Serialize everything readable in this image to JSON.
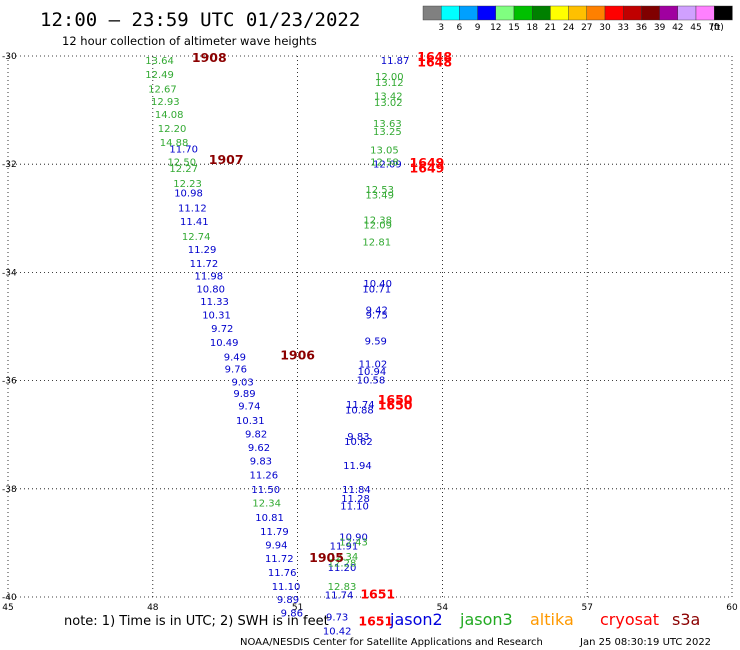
{
  "chart_data": {
    "type": "scatter",
    "title": "12:00 – 23:59 UTC 01/23/2022",
    "subtitle": "12 hour collection of altimeter wave heights",
    "xlim": [
      45,
      60
    ],
    "ylim": [
      -40,
      -30
    ],
    "x_ticks": [
      "45",
      "48",
      "51",
      "54",
      "57",
      "60"
    ],
    "y_ticks": [
      "-30",
      "-32",
      "-34",
      "-36",
      "-38",
      "-40"
    ],
    "grid": true,
    "legend": {
      "values": [
        "3",
        "6",
        "9",
        "12",
        "15",
        "18",
        "21",
        "24",
        "27",
        "30",
        "33",
        "36",
        "39",
        "42",
        "45",
        "70"
      ],
      "unit": "(ft)",
      "colors": [
        "#808080",
        "#00ffff",
        "#00a0ff",
        "#0000ff",
        "#80ff80",
        "#00c000",
        "#008000",
        "#ffff00",
        "#ffc000",
        "#ff8000",
        "#ff0000",
        "#c00000",
        "#800000",
        "#a000a0",
        "#d0a0ff",
        "#ff80ff",
        "#000000"
      ]
    },
    "series": [
      {
        "name": "jason2",
        "color": "#0000cc",
        "points": [
          {
            "x": 48.64,
            "y": -31.71,
            "label": "11.70"
          },
          {
            "x": 48.74,
            "y": -32.52,
            "label": "10.98"
          },
          {
            "x": 48.82,
            "y": -32.8,
            "label": "11.12"
          },
          {
            "x": 48.86,
            "y": -33.05,
            "label": "11.41"
          },
          {
            "x": 49.02,
            "y": -33.57,
            "label": "11.29"
          },
          {
            "x": 49.06,
            "y": -33.83,
            "label": "11.72"
          },
          {
            "x": 49.16,
            "y": -34.06,
            "label": "11.98"
          },
          {
            "x": 49.2,
            "y": -34.3,
            "label": "10.80"
          },
          {
            "x": 49.28,
            "y": -34.53,
            "label": "11.33"
          },
          {
            "x": 49.32,
            "y": -34.78,
            "label": "10.31"
          },
          {
            "x": 49.44,
            "y": -35.03,
            "label": "9.72"
          },
          {
            "x": 49.48,
            "y": -35.29,
            "label": "10.49"
          },
          {
            "x": 49.7,
            "y": -35.55,
            "label": "9.49"
          },
          {
            "x": 49.72,
            "y": -35.78,
            "label": "9.76"
          },
          {
            "x": 49.86,
            "y": -36.02,
            "label": "9.03"
          },
          {
            "x": 49.9,
            "y": -36.23,
            "label": "9.89"
          },
          {
            "x": 50.0,
            "y": -36.46,
            "label": "9.74"
          },
          {
            "x": 50.02,
            "y": -36.73,
            "label": "10.31"
          },
          {
            "x": 50.14,
            "y": -36.98,
            "label": "9.82"
          },
          {
            "x": 50.2,
            "y": -37.23,
            "label": "9.62"
          },
          {
            "x": 50.24,
            "y": -37.48,
            "label": "9.83"
          },
          {
            "x": 50.3,
            "y": -37.74,
            "label": "11.26"
          },
          {
            "x": 50.34,
            "y": -38.0,
            "label": "11.50"
          },
          {
            "x": 50.42,
            "y": -38.52,
            "label": "10.81"
          },
          {
            "x": 50.52,
            "y": -38.78,
            "label": "11.79"
          },
          {
            "x": 50.56,
            "y": -39.03,
            "label": "9.94"
          },
          {
            "x": 50.62,
            "y": -39.28,
            "label": "11.72"
          },
          {
            "x": 50.68,
            "y": -39.54,
            "label": "11.76"
          },
          {
            "x": 50.76,
            "y": -39.8,
            "label": "11.10"
          },
          {
            "x": 50.8,
            "y": -40.04,
            "label": "9.89"
          },
          {
            "x": 50.88,
            "y": -40.29,
            "label": "9.86"
          },
          {
            "x": 53.02,
            "y": -30.07,
            "label": "11.87"
          },
          {
            "x": 52.86,
            "y": -31.99,
            "label": "12.09"
          },
          {
            "x": 52.66,
            "y": -34.2,
            "label": "10.40"
          },
          {
            "x": 52.64,
            "y": -34.3,
            "label": "10.71"
          },
          {
            "x": 52.64,
            "y": -34.69,
            "label": "9.42"
          },
          {
            "x": 52.64,
            "y": -34.78,
            "label": "9.75"
          },
          {
            "x": 52.62,
            "y": -35.26,
            "label": "9.59"
          },
          {
            "x": 52.56,
            "y": -35.68,
            "label": "11.02"
          },
          {
            "x": 52.54,
            "y": -35.82,
            "label": "10.94"
          },
          {
            "x": 52.52,
            "y": -35.98,
            "label": "10.58"
          },
          {
            "x": 52.3,
            "y": -36.43,
            "label": "11.74"
          },
          {
            "x": 52.28,
            "y": -36.53,
            "label": "10.88"
          },
          {
            "x": 52.26,
            "y": -37.02,
            "label": "9.83"
          },
          {
            "x": 52.26,
            "y": -37.12,
            "label": "10.62"
          },
          {
            "x": 52.24,
            "y": -37.56,
            "label": "11.94"
          },
          {
            "x": 52.22,
            "y": -38.0,
            "label": "11.84"
          },
          {
            "x": 52.2,
            "y": -38.17,
            "label": "11.28"
          },
          {
            "x": 52.18,
            "y": -38.31,
            "label": "11.10"
          },
          {
            "x": 52.16,
            "y": -38.88,
            "label": "10.90"
          },
          {
            "x": 51.96,
            "y": -39.05,
            "label": "11.91"
          },
          {
            "x": 51.92,
            "y": -39.45,
            "label": "11.20"
          },
          {
            "x": 51.86,
            "y": -39.95,
            "label": "11.74"
          },
          {
            "x": 51.82,
            "y": -40.36,
            "label": "9.73"
          },
          {
            "x": 51.82,
            "y": -40.62,
            "label": "10.42"
          }
        ]
      },
      {
        "name": "jason3",
        "color": "#33aa33",
        "points": [
          {
            "x": 48.14,
            "y": -30.07,
            "label": "13.64"
          },
          {
            "x": 48.14,
            "y": -30.33,
            "label": "12.49"
          },
          {
            "x": 48.2,
            "y": -30.6,
            "label": "12.67"
          },
          {
            "x": 48.26,
            "y": -30.83,
            "label": "12.93"
          },
          {
            "x": 48.34,
            "y": -31.07,
            "label": "14.08"
          },
          {
            "x": 48.4,
            "y": -31.33,
            "label": "12.20"
          },
          {
            "x": 48.44,
            "y": -31.59,
            "label": "14.88"
          },
          {
            "x": 48.6,
            "y": -31.95,
            "label": "12.50"
          },
          {
            "x": 48.64,
            "y": -32.07,
            "label": "12.27"
          },
          {
            "x": 48.72,
            "y": -32.35,
            "label": "12.23"
          },
          {
            "x": 48.9,
            "y": -33.33,
            "label": "12.74"
          },
          {
            "x": 50.36,
            "y": -38.25,
            "label": "12.34"
          },
          {
            "x": 51.96,
            "y": -39.24,
            "label": "12.34"
          },
          {
            "x": 51.92,
            "y": -39.36,
            "label": "12.28"
          },
          {
            "x": 51.92,
            "y": -39.8,
            "label": "12.83"
          },
          {
            "x": 52.16,
            "y": -38.97,
            "label": "12.43"
          },
          {
            "x": 52.9,
            "y": -30.37,
            "label": "12.00"
          },
          {
            "x": 52.9,
            "y": -30.48,
            "label": "13.12"
          },
          {
            "x": 52.88,
            "y": -30.73,
            "label": "13.42"
          },
          {
            "x": 52.88,
            "y": -30.85,
            "label": "13.02"
          },
          {
            "x": 52.86,
            "y": -31.24,
            "label": "13.63"
          },
          {
            "x": 52.86,
            "y": -31.39,
            "label": "13.25"
          },
          {
            "x": 52.8,
            "y": -31.73,
            "label": "13.05"
          },
          {
            "x": 52.8,
            "y": -31.95,
            "label": "12.58"
          },
          {
            "x": 52.7,
            "y": -32.46,
            "label": "12.53"
          },
          {
            "x": 52.7,
            "y": -32.56,
            "label": "13.49"
          },
          {
            "x": 52.66,
            "y": -33.02,
            "label": "12.38"
          },
          {
            "x": 52.66,
            "y": -33.11,
            "label": "12.09"
          },
          {
            "x": 52.64,
            "y": -33.43,
            "label": "12.81"
          }
        ]
      },
      {
        "name": "cryosat",
        "color": "#ff0000",
        "points": [
          {
            "x": 53.84,
            "y": -30.02,
            "label": "1648"
          },
          {
            "x": 53.84,
            "y": -30.12,
            "label": "1648"
          },
          {
            "x": 53.68,
            "y": -31.98,
            "label": "1649"
          },
          {
            "x": 53.68,
            "y": -32.08,
            "label": "1649"
          },
          {
            "x": 53.02,
            "y": -36.36,
            "label": "1650"
          },
          {
            "x": 53.02,
            "y": -36.46,
            "label": "1650"
          },
          {
            "x": 52.66,
            "y": -39.95,
            "label": "1651"
          },
          {
            "x": 52.62,
            "y": -40.45,
            "label": "1651"
          }
        ]
      },
      {
        "name": "s3a",
        "color": "#8b0000",
        "points": [
          {
            "x": 49.17,
            "y": -30.04,
            "label": "1908"
          },
          {
            "x": 49.52,
            "y": -31.92,
            "label": "1907"
          },
          {
            "x": 51.0,
            "y": -35.54,
            "label": "1906"
          },
          {
            "x": 51.6,
            "y": -39.28,
            "label": "1905"
          }
        ]
      }
    ]
  },
  "footer": {
    "note": "note: 1) Time is in UTC; 2) SWH is in feet",
    "legend_names": [
      "jason2",
      "jason3",
      "altika",
      "cryosat",
      "s3a"
    ],
    "legend_colors": [
      "#0000dd",
      "#22aa22",
      "#ff9900",
      "#ff0000",
      "#8b0000"
    ],
    "credit": "NOAA/NESDIS Center for Satellite Applications and Research",
    "timestamp": "Jan 25 08:30:19 UTC 2022"
  }
}
